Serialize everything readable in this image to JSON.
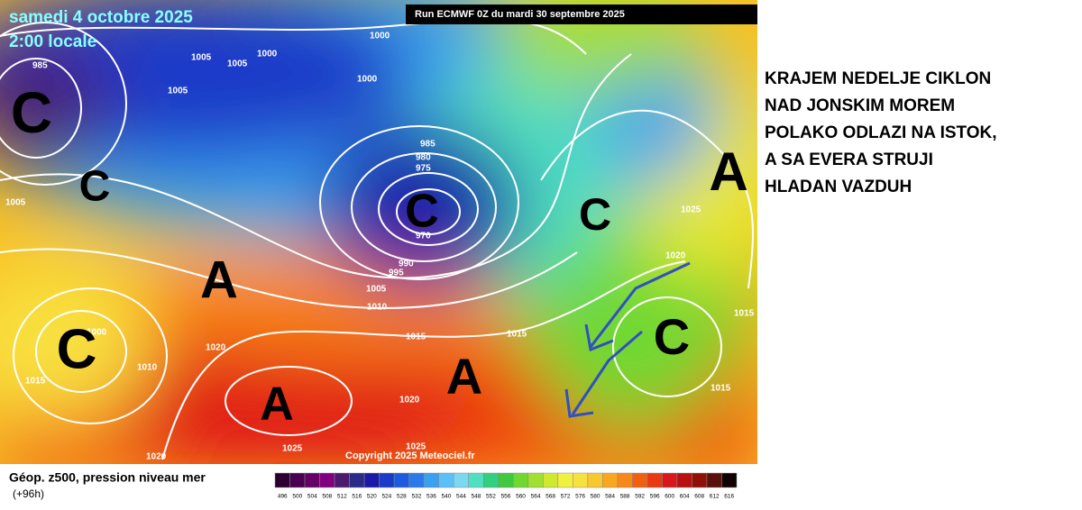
{
  "header": {
    "date": "samedi 4 octobre 2025",
    "time": "2:00 locale",
    "run": "Run ECMWF 0Z du mardi 30 septembre 2025"
  },
  "map": {
    "isobar_labels": [
      1000,
      1005,
      1005,
      1000,
      1005,
      1000,
      985,
      980,
      975,
      970,
      990,
      995,
      1005,
      1010,
      1015,
      1015,
      1020,
      1010,
      1015,
      1020,
      1025,
      1025,
      1020,
      1020,
      1025,
      1015,
      1015,
      1005,
      985,
      1000
    ],
    "centers": [
      "C",
      "C",
      "C",
      "C",
      "A",
      "A",
      "C",
      "A",
      "A",
      "C"
    ],
    "copyright": "Copyright 2025 Meteociel.fr"
  },
  "legend": {
    "title": "Géop. z500, pression niveau mer",
    "lead": "(+96h)",
    "values": [
      496,
      500,
      504,
      508,
      512,
      516,
      520,
      524,
      528,
      532,
      536,
      540,
      544,
      548,
      552,
      556,
      560,
      564,
      568,
      572,
      576,
      580,
      584,
      588,
      592,
      596,
      600,
      604,
      608,
      612,
      616
    ],
    "colors": [
      "#2b0030",
      "#4a0050",
      "#660066",
      "#800080",
      "#4b1a6e",
      "#2a2a8a",
      "#1a1aa8",
      "#1a3ac8",
      "#1e5ae0",
      "#2a7ae8",
      "#3aa0f0",
      "#5ac0f5",
      "#7ad8f0",
      "#50e0c0",
      "#30d080",
      "#40c840",
      "#70d830",
      "#a0e030",
      "#d0e830",
      "#f0f040",
      "#f8e040",
      "#f8c830",
      "#f8a820",
      "#f88818",
      "#f06010",
      "#e83a10",
      "#d81818",
      "#b81010",
      "#901008",
      "#581008",
      "#100000"
    ]
  },
  "caption": {
    "lines": [
      "KRAJEM NEDELJE CIKLON",
      "NAD JONSKIM MOREM",
      "POLAKO ODLAZI NA ISTOK,",
      "A SA EVERA STRUJI",
      "HLADAN VAZDUH"
    ]
  }
}
